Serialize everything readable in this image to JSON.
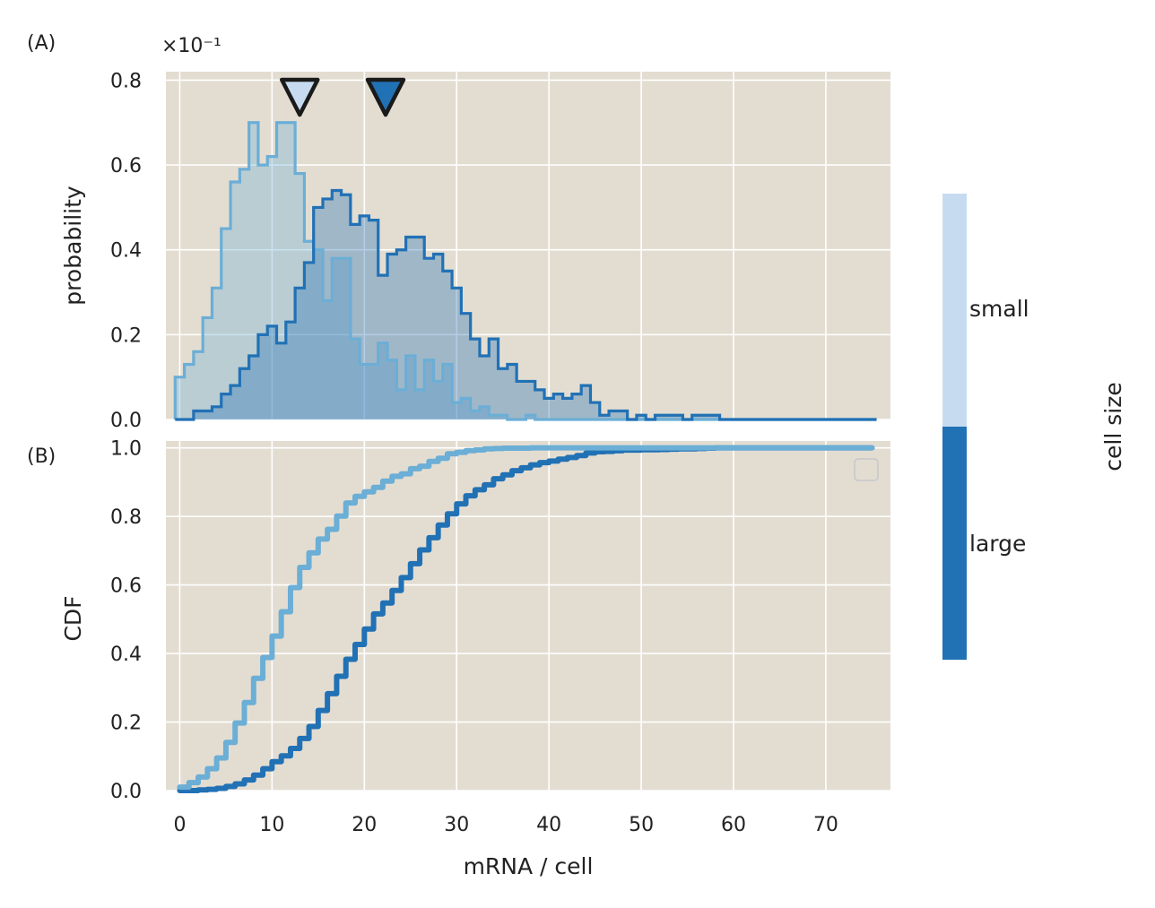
{
  "chart_data": [
    {
      "panel_label": "(A)",
      "type": "histogram-step",
      "offset_text": "×10⁻¹",
      "ylabel": "probability",
      "xlim": [
        -1.5,
        77
      ],
      "ylim": [
        0,
        0.082
      ],
      "yscale_factor": 0.1,
      "yticks": [
        0,
        0.2,
        0.4,
        0.6,
        0.8
      ],
      "ytick_labels": [
        "0.0",
        "0.2",
        "0.4",
        "0.6",
        "0.8"
      ],
      "xticks": [
        0,
        10,
        20,
        30,
        40,
        50,
        60,
        70
      ],
      "grid": true,
      "series": [
        {
          "name": "small",
          "color": "#6baed6",
          "x": [
            0,
            1,
            2,
            3,
            4,
            5,
            6,
            7,
            8,
            9,
            10,
            11,
            12,
            13,
            14,
            15,
            16,
            17,
            18,
            19,
            20,
            21,
            22,
            23,
            24,
            25,
            26,
            27,
            28,
            29,
            30,
            31,
            32,
            33,
            34,
            35,
            36,
            37,
            38,
            39,
            40,
            41,
            42,
            43,
            44,
            45,
            46,
            47,
            48,
            49,
            50,
            51,
            52,
            53,
            54,
            55,
            56,
            57,
            58,
            59,
            60,
            61,
            62,
            63,
            64,
            65,
            66,
            67,
            68,
            69,
            70,
            71,
            72,
            73,
            74,
            75
          ],
          "values": [
            0.01,
            0.013,
            0.016,
            0.024,
            0.031,
            0.045,
            0.056,
            0.059,
            0.07,
            0.06,
            0.062,
            0.07,
            0.07,
            0.058,
            0.042,
            0.04,
            0.028,
            0.038,
            0.038,
            0.019,
            0.013,
            0.013,
            0.018,
            0.014,
            0.007,
            0.015,
            0.007,
            0.014,
            0.009,
            0.013,
            0.004,
            0.005,
            0.002,
            0.003,
            0.001,
            0.001,
            0,
            0,
            0.001,
            0,
            0,
            0,
            0,
            0,
            0,
            0,
            0,
            0,
            0,
            0,
            0,
            0,
            0,
            0,
            0,
            0,
            0,
            0,
            0,
            0,
            0,
            0,
            0,
            0,
            0,
            0,
            0,
            0,
            0,
            0,
            0,
            0,
            0,
            0,
            0,
            0
          ]
        },
        {
          "name": "large",
          "color": "#2171b5",
          "x": [
            0,
            1,
            2,
            3,
            4,
            5,
            6,
            7,
            8,
            9,
            10,
            11,
            12,
            13,
            14,
            15,
            16,
            17,
            18,
            19,
            20,
            21,
            22,
            23,
            24,
            25,
            26,
            27,
            28,
            29,
            30,
            31,
            32,
            33,
            34,
            35,
            36,
            37,
            38,
            39,
            40,
            41,
            42,
            43,
            44,
            45,
            46,
            47,
            48,
            49,
            50,
            51,
            52,
            53,
            54,
            55,
            56,
            57,
            58,
            59,
            60,
            61,
            62,
            63,
            64,
            65,
            66,
            67,
            68,
            69,
            70,
            71,
            72,
            73,
            74,
            75
          ],
          "values": [
            0,
            0,
            0.002,
            0.002,
            0.003,
            0.006,
            0.008,
            0.012,
            0.015,
            0.02,
            0.022,
            0.018,
            0.023,
            0.031,
            0.037,
            0.05,
            0.052,
            0.054,
            0.053,
            0.046,
            0.048,
            0.047,
            0.034,
            0.039,
            0.04,
            0.043,
            0.043,
            0.038,
            0.039,
            0.035,
            0.031,
            0.025,
            0.019,
            0.015,
            0.019,
            0.012,
            0.013,
            0.009,
            0.009,
            0.007,
            0.005,
            0.006,
            0.005,
            0.006,
            0.008,
            0.004,
            0.001,
            0.002,
            0.002,
            0,
            0.001,
            0,
            0.001,
            0.001,
            0.001,
            0,
            0.001,
            0.001,
            0.001,
            0,
            0,
            0,
            0,
            0,
            0,
            0,
            0,
            0,
            0,
            0,
            0,
            0,
            0,
            0,
            0,
            0
          ]
        }
      ],
      "markers": [
        {
          "series": "small",
          "x": 13.0,
          "fill": "#c6dbef"
        },
        {
          "series": "large",
          "x": 22.3,
          "fill": "#2171b5"
        }
      ]
    },
    {
      "panel_label": "(B)",
      "type": "ecdf-step",
      "xlabel": "mRNA / cell",
      "ylabel": "CDF",
      "xlim": [
        -1.5,
        77
      ],
      "ylim": [
        0,
        1.02
      ],
      "yticks": [
        0,
        0.2,
        0.4,
        0.6,
        0.8,
        1.0
      ],
      "ytick_labels": [
        "0.0",
        "0.2",
        "0.4",
        "0.6",
        "0.8",
        "1.0"
      ],
      "xticks": [
        0,
        10,
        20,
        30,
        40,
        50,
        60,
        70
      ],
      "xtick_labels": [
        "0",
        "10",
        "20",
        "30",
        "40",
        "50",
        "60",
        "70"
      ],
      "grid": true,
      "series": [
        {
          "name": "small",
          "color": "#6baed6"
        },
        {
          "name": "large",
          "color": "#2171b5"
        }
      ]
    }
  ],
  "colorbar": {
    "title": "cell size",
    "categories": [
      {
        "label": "small",
        "color": "#c6dbef"
      },
      {
        "label": "large",
        "color": "#2171b5"
      }
    ]
  },
  "axes_background": "#e3ddd1"
}
